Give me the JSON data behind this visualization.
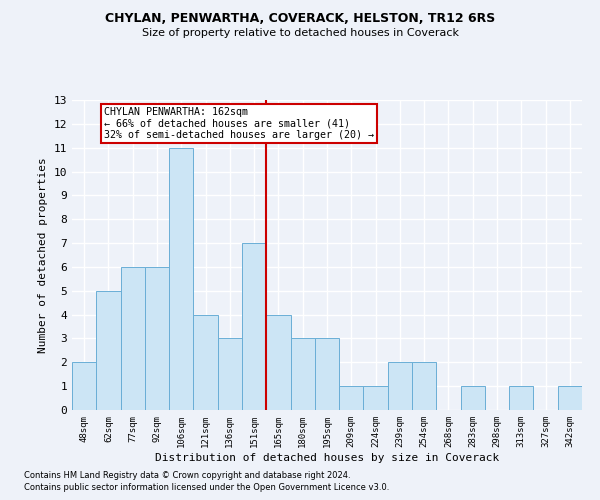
{
  "title": "CHYLAN, PENWARTHA, COVERACK, HELSTON, TR12 6RS",
  "subtitle": "Size of property relative to detached houses in Coverack",
  "xlabel": "Distribution of detached houses by size in Coverack",
  "ylabel": "Number of detached properties",
  "categories": [
    "48sqm",
    "62sqm",
    "77sqm",
    "92sqm",
    "106sqm",
    "121sqm",
    "136sqm",
    "151sqm",
    "165sqm",
    "180sqm",
    "195sqm",
    "209sqm",
    "224sqm",
    "239sqm",
    "254sqm",
    "268sqm",
    "283sqm",
    "298sqm",
    "313sqm",
    "327sqm",
    "342sqm"
  ],
  "values": [
    2,
    5,
    6,
    6,
    11,
    4,
    3,
    7,
    4,
    3,
    3,
    1,
    1,
    2,
    2,
    0,
    1,
    0,
    1,
    0,
    1
  ],
  "bar_color": "#cce5f5",
  "bar_edge_color": "#6aaed6",
  "property_line_index": 8,
  "property_line_color": "#cc0000",
  "annotation_text": "CHYLAN PENWARTHA: 162sqm\n← 66% of detached houses are smaller (41)\n32% of semi-detached houses are larger (20) →",
  "annotation_box_color": "#cc0000",
  "ylim": [
    0,
    13
  ],
  "yticks": [
    0,
    1,
    2,
    3,
    4,
    5,
    6,
    7,
    8,
    9,
    10,
    11,
    12,
    13
  ],
  "background_color": "#eef2f9",
  "grid_color": "#ffffff",
  "footer_line1": "Contains HM Land Registry data © Crown copyright and database right 2024.",
  "footer_line2": "Contains public sector information licensed under the Open Government Licence v3.0."
}
